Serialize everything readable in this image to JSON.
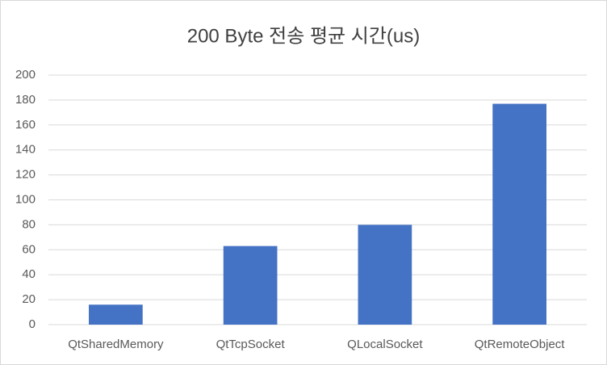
{
  "chart_data": {
    "type": "bar",
    "title": "200 Byte 전송 평균 시간(us)",
    "categories": [
      "QtSharedMemory",
      "QtTcpSocket",
      "QLocalSocket",
      "QtRemoteObject"
    ],
    "values": [
      16,
      63,
      80,
      177
    ],
    "color": "#4472c4",
    "ylim": [
      0,
      200
    ],
    "yticks": [
      0,
      20,
      40,
      60,
      80,
      100,
      120,
      140,
      160,
      180,
      200
    ],
    "grid": true
  }
}
